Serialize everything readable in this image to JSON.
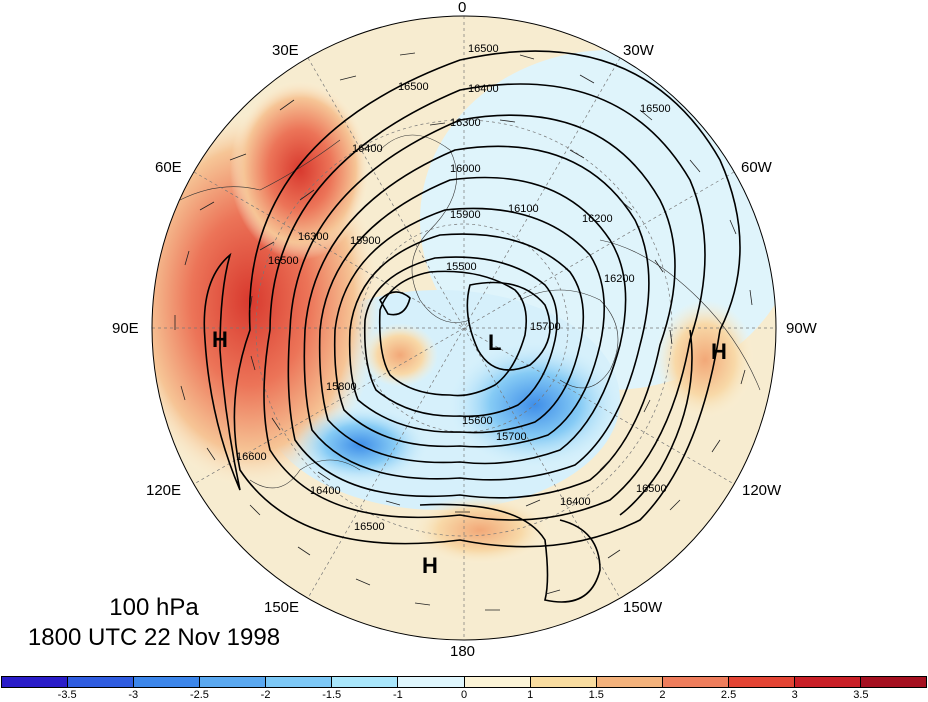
{
  "caption": {
    "level": "100 hPa",
    "time": "1800 UTC 22 Nov 1998"
  },
  "longitude_labels": {
    "lon_0": "0",
    "lon_30w": "30W",
    "lon_60w": "60W",
    "lon_90w": "90W",
    "lon_120w": "120W",
    "lon_150w": "150W",
    "lon_180": "180",
    "lon_150e": "150E",
    "lon_120e": "120E",
    "lon_90e": "90E",
    "lon_60e": "60E",
    "lon_30e": "30E"
  },
  "pressure_centers": {
    "high_90e": "H",
    "low_center": "L",
    "high_90w": "H",
    "high_180": "H"
  },
  "contour_labels": [
    "16500",
    "16500",
    "16400",
    "16300",
    "16400",
    "16200",
    "16100",
    "16000",
    "15900",
    "15800",
    "15900",
    "15700",
    "15600",
    "15700",
    "15500",
    "16400",
    "16500",
    "16500",
    "16400",
    "16500",
    "16200",
    "16300",
    "16600",
    "16500"
  ],
  "colorbar": {
    "tick_labels": [
      "-3.5",
      "-3",
      "-2.5",
      "-2",
      "-1.5",
      "-1",
      "0",
      "1",
      "1.5",
      "2",
      "2.5",
      "3",
      "3.5"
    ],
    "colors": [
      "#2a1cc9",
      "#2f5ce0",
      "#3c86ea",
      "#5aa8f0",
      "#7dc8f6",
      "#a9e6fb",
      "#dff6fd",
      "#fbf3d6",
      "#f8dca0",
      "#f3b27c",
      "#ee7d5c",
      "#e34434",
      "#c91f27",
      "#a51020"
    ]
  }
}
